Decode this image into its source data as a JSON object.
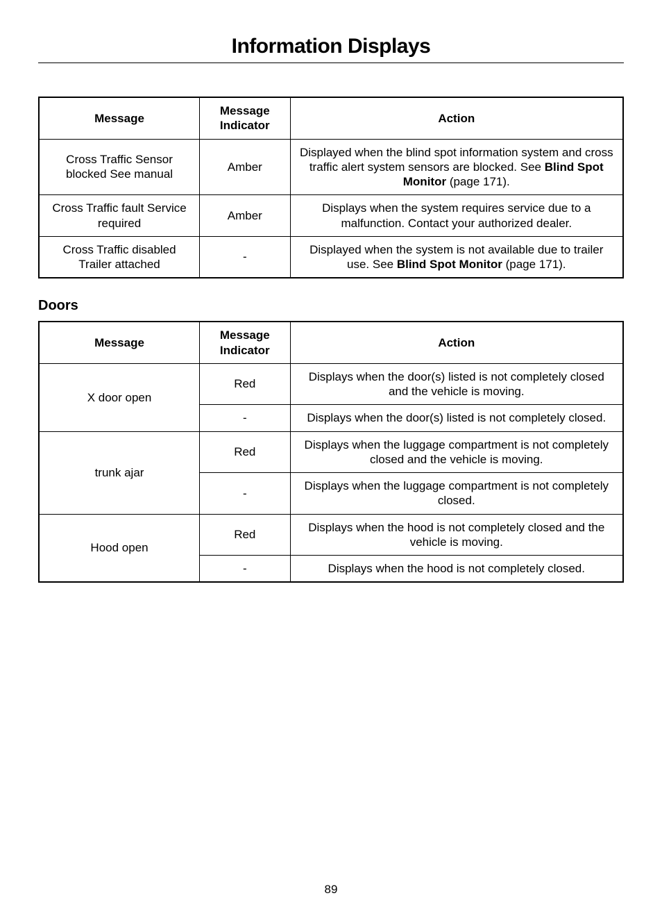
{
  "page": {
    "title": "Information Displays",
    "number": "89"
  },
  "headers": {
    "message": "Message",
    "indicator": "Message Indicator",
    "action": "Action"
  },
  "section_doors_heading": "Doors",
  "bold_ref": "Blind Spot Monitor",
  "table1": {
    "rows": [
      {
        "message": "Cross Traffic Sensor blocked See manual",
        "indicator": "Amber",
        "action_pre": "Displayed when the blind spot information system and cross traffic alert system sensors are blocked.  See ",
        "action_post": " (page 171)."
      },
      {
        "message": "Cross Traffic fault Service required",
        "indicator": "Amber",
        "action_pre": "Displays when the system requires service due to a malfunction. Contact your authorized dealer.",
        "action_post": ""
      },
      {
        "message": "Cross Traffic disabled Trailer attached",
        "indicator": "-",
        "action_pre": "Displayed when the system is not available due to trailer use.  See ",
        "action_post": " (page 171)."
      }
    ]
  },
  "table2": {
    "rows": [
      {
        "message": "X door open",
        "sub": [
          {
            "indicator": "Red",
            "action": "Displays when the door(s) listed is not completely closed and the vehicle is moving."
          },
          {
            "indicator": "-",
            "action": "Displays when the door(s) listed is not completely closed."
          }
        ]
      },
      {
        "message": "trunk ajar",
        "sub": [
          {
            "indicator": "Red",
            "action": "Displays when the luggage compartment is not completely closed and the vehicle is moving."
          },
          {
            "indicator": "-",
            "action": "Displays when the luggage compartment is not completely closed."
          }
        ]
      },
      {
        "message": "Hood open",
        "sub": [
          {
            "indicator": "Red",
            "action": "Displays when the hood is not completely closed and the vehicle is moving."
          },
          {
            "indicator": "-",
            "action": "Displays when the hood is not completely closed."
          }
        ]
      }
    ]
  }
}
